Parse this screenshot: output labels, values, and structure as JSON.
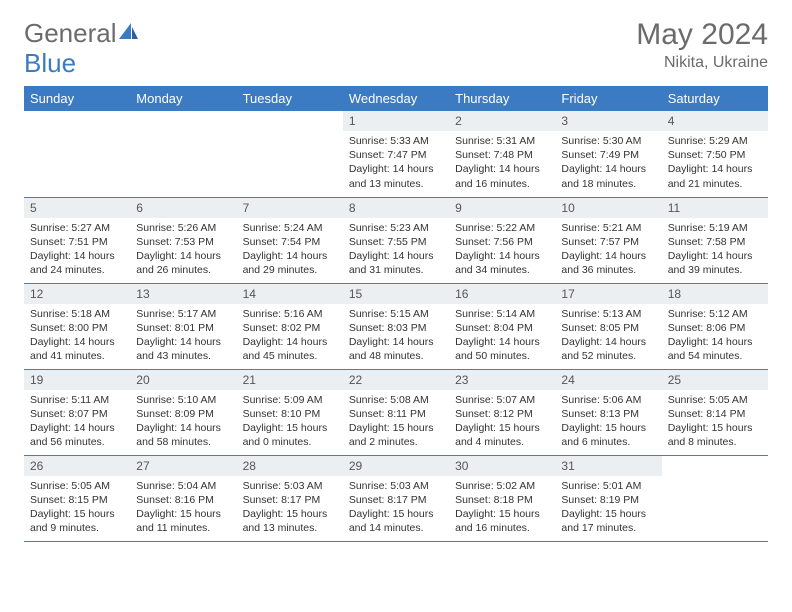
{
  "logo": {
    "text1": "General",
    "text2": "Blue"
  },
  "header": {
    "title": "May 2024",
    "location": "Nikita, Ukraine"
  },
  "colors": {
    "header_bg": "#3b7bc4",
    "header_text": "#ffffff",
    "daynum_bg": "#eceff2",
    "text": "#333333",
    "title": "#6b6b6b",
    "border": "#5a7a9a"
  },
  "weekdays": [
    "Sunday",
    "Monday",
    "Tuesday",
    "Wednesday",
    "Thursday",
    "Friday",
    "Saturday"
  ],
  "weeks": [
    [
      null,
      null,
      null,
      {
        "n": "1",
        "sr": "5:33 AM",
        "ss": "7:47 PM",
        "dl": "14 hours and 13 minutes."
      },
      {
        "n": "2",
        "sr": "5:31 AM",
        "ss": "7:48 PM",
        "dl": "14 hours and 16 minutes."
      },
      {
        "n": "3",
        "sr": "5:30 AM",
        "ss": "7:49 PM",
        "dl": "14 hours and 18 minutes."
      },
      {
        "n": "4",
        "sr": "5:29 AM",
        "ss": "7:50 PM",
        "dl": "14 hours and 21 minutes."
      }
    ],
    [
      {
        "n": "5",
        "sr": "5:27 AM",
        "ss": "7:51 PM",
        "dl": "14 hours and 24 minutes."
      },
      {
        "n": "6",
        "sr": "5:26 AM",
        "ss": "7:53 PM",
        "dl": "14 hours and 26 minutes."
      },
      {
        "n": "7",
        "sr": "5:24 AM",
        "ss": "7:54 PM",
        "dl": "14 hours and 29 minutes."
      },
      {
        "n": "8",
        "sr": "5:23 AM",
        "ss": "7:55 PM",
        "dl": "14 hours and 31 minutes."
      },
      {
        "n": "9",
        "sr": "5:22 AM",
        "ss": "7:56 PM",
        "dl": "14 hours and 34 minutes."
      },
      {
        "n": "10",
        "sr": "5:21 AM",
        "ss": "7:57 PM",
        "dl": "14 hours and 36 minutes."
      },
      {
        "n": "11",
        "sr": "5:19 AM",
        "ss": "7:58 PM",
        "dl": "14 hours and 39 minutes."
      }
    ],
    [
      {
        "n": "12",
        "sr": "5:18 AM",
        "ss": "8:00 PM",
        "dl": "14 hours and 41 minutes."
      },
      {
        "n": "13",
        "sr": "5:17 AM",
        "ss": "8:01 PM",
        "dl": "14 hours and 43 minutes."
      },
      {
        "n": "14",
        "sr": "5:16 AM",
        "ss": "8:02 PM",
        "dl": "14 hours and 45 minutes."
      },
      {
        "n": "15",
        "sr": "5:15 AM",
        "ss": "8:03 PM",
        "dl": "14 hours and 48 minutes."
      },
      {
        "n": "16",
        "sr": "5:14 AM",
        "ss": "8:04 PM",
        "dl": "14 hours and 50 minutes."
      },
      {
        "n": "17",
        "sr": "5:13 AM",
        "ss": "8:05 PM",
        "dl": "14 hours and 52 minutes."
      },
      {
        "n": "18",
        "sr": "5:12 AM",
        "ss": "8:06 PM",
        "dl": "14 hours and 54 minutes."
      }
    ],
    [
      {
        "n": "19",
        "sr": "5:11 AM",
        "ss": "8:07 PM",
        "dl": "14 hours and 56 minutes."
      },
      {
        "n": "20",
        "sr": "5:10 AM",
        "ss": "8:09 PM",
        "dl": "14 hours and 58 minutes."
      },
      {
        "n": "21",
        "sr": "5:09 AM",
        "ss": "8:10 PM",
        "dl": "15 hours and 0 minutes."
      },
      {
        "n": "22",
        "sr": "5:08 AM",
        "ss": "8:11 PM",
        "dl": "15 hours and 2 minutes."
      },
      {
        "n": "23",
        "sr": "5:07 AM",
        "ss": "8:12 PM",
        "dl": "15 hours and 4 minutes."
      },
      {
        "n": "24",
        "sr": "5:06 AM",
        "ss": "8:13 PM",
        "dl": "15 hours and 6 minutes."
      },
      {
        "n": "25",
        "sr": "5:05 AM",
        "ss": "8:14 PM",
        "dl": "15 hours and 8 minutes."
      }
    ],
    [
      {
        "n": "26",
        "sr": "5:05 AM",
        "ss": "8:15 PM",
        "dl": "15 hours and 9 minutes."
      },
      {
        "n": "27",
        "sr": "5:04 AM",
        "ss": "8:16 PM",
        "dl": "15 hours and 11 minutes."
      },
      {
        "n": "28",
        "sr": "5:03 AM",
        "ss": "8:17 PM",
        "dl": "15 hours and 13 minutes."
      },
      {
        "n": "29",
        "sr": "5:03 AM",
        "ss": "8:17 PM",
        "dl": "15 hours and 14 minutes."
      },
      {
        "n": "30",
        "sr": "5:02 AM",
        "ss": "8:18 PM",
        "dl": "15 hours and 16 minutes."
      },
      {
        "n": "31",
        "sr": "5:01 AM",
        "ss": "8:19 PM",
        "dl": "15 hours and 17 minutes."
      },
      null
    ]
  ],
  "labels": {
    "sunrise": "Sunrise:",
    "sunset": "Sunset:",
    "daylight": "Daylight:"
  }
}
